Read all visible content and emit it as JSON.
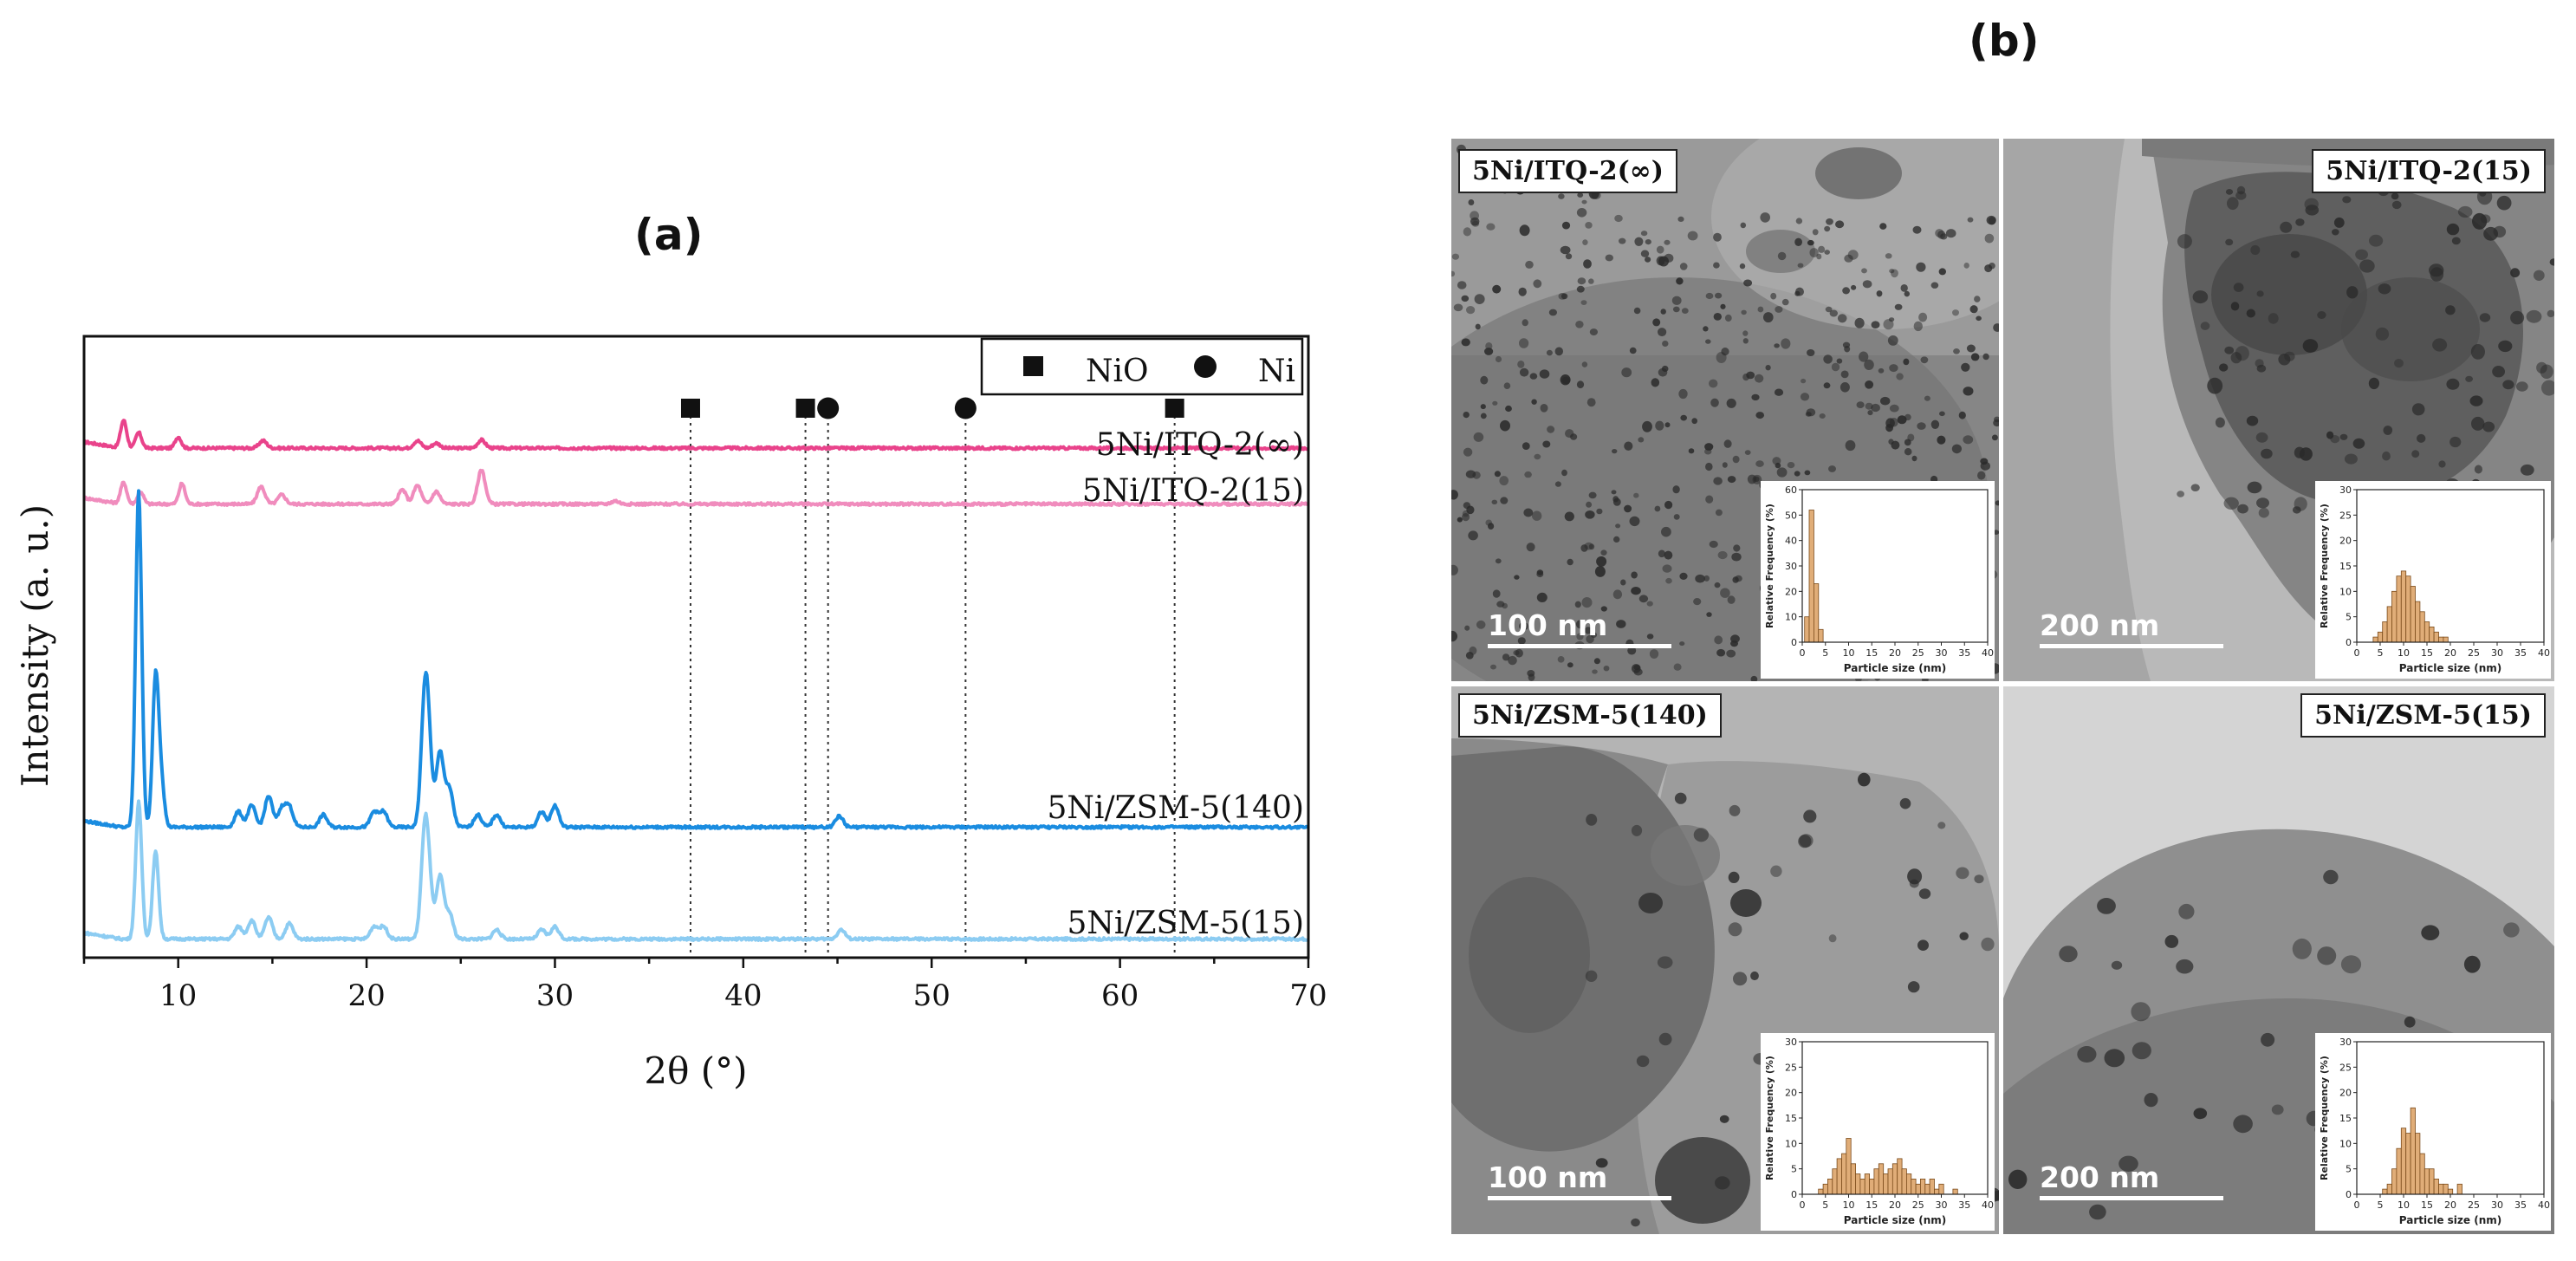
{
  "panel_a_label": "(a)",
  "panel_b_label": "(b)",
  "colors": {
    "itq_inf": "#e9438b",
    "itq_15": "#f08cbd",
    "zsm_140": "#1a8ce0",
    "zsm_15": "#8cccf2",
    "histogram_bar": "#e0ad78",
    "histogram_edge": "#7a4a1a"
  },
  "chart_data": [
    {
      "type": "line",
      "xlabel": "2θ (°)",
      "ylabel": "Intensity (a. u.)",
      "xlim": [
        5,
        70
      ],
      "xticks": [
        10,
        20,
        30,
        40,
        50,
        60,
        70
      ],
      "legend": {
        "placement": "top-right",
        "entries": [
          {
            "marker": "square",
            "label": "NiO"
          },
          {
            "marker": "circle",
            "label": "Ni"
          }
        ]
      },
      "reference_lines": [
        {
          "x": 37.2,
          "marker": "square"
        },
        {
          "x": 43.3,
          "marker": "square"
        },
        {
          "x": 44.5,
          "marker": "circle"
        },
        {
          "x": 51.8,
          "marker": "circle"
        },
        {
          "x": 62.9,
          "marker": "square"
        }
      ],
      "series": [
        {
          "name": "5Ni/ITQ-2(∞)",
          "color": "#e9438b",
          "baseline": 0.82,
          "peaks": [
            [
              7.1,
              0.045
            ],
            [
              7.9,
              0.025
            ],
            [
              10.0,
              0.018
            ],
            [
              14.5,
              0.012
            ],
            [
              22.7,
              0.012
            ],
            [
              23.7,
              0.008
            ],
            [
              26.1,
              0.013
            ]
          ]
        },
        {
          "name": "5Ni/ITQ-2(15)",
          "color": "#f08cbd",
          "baseline": 0.73,
          "peaks": [
            [
              7.1,
              0.035
            ],
            [
              8.0,
              0.02
            ],
            [
              10.2,
              0.033
            ],
            [
              14.4,
              0.028
            ],
            [
              15.5,
              0.015
            ],
            [
              21.9,
              0.023
            ],
            [
              22.7,
              0.03
            ],
            [
              23.7,
              0.02
            ],
            [
              26.1,
              0.055
            ],
            [
              33.2,
              0.005
            ]
          ]
        },
        {
          "name": "5Ni/ZSM-5(140)",
          "color": "#1a8ce0",
          "baseline": 0.21,
          "peaks": [
            [
              7.9,
              0.54
            ],
            [
              8.8,
              0.24
            ],
            [
              9.1,
              0.07
            ],
            [
              13.2,
              0.025
            ],
            [
              13.9,
              0.035
            ],
            [
              14.8,
              0.05
            ],
            [
              15.5,
              0.03
            ],
            [
              15.9,
              0.032
            ],
            [
              17.7,
              0.02
            ],
            [
              20.4,
              0.025
            ],
            [
              20.9,
              0.025
            ],
            [
              23.1,
              0.195
            ],
            [
              23.3,
              0.08
            ],
            [
              23.9,
              0.12
            ],
            [
              24.4,
              0.06
            ],
            [
              25.9,
              0.02
            ],
            [
              26.9,
              0.02
            ],
            [
              29.3,
              0.025
            ],
            [
              30.0,
              0.035
            ],
            [
              45.1,
              0.018
            ]
          ]
        },
        {
          "name": "5Ni/ZSM-5(15)",
          "color": "#8cccf2",
          "baseline": 0.03,
          "peaks": [
            [
              7.9,
              0.22
            ],
            [
              8.8,
              0.14
            ],
            [
              13.2,
              0.02
            ],
            [
              13.9,
              0.03
            ],
            [
              14.8,
              0.035
            ],
            [
              15.9,
              0.025
            ],
            [
              20.4,
              0.02
            ],
            [
              20.9,
              0.02
            ],
            [
              23.1,
              0.16
            ],
            [
              23.3,
              0.06
            ],
            [
              23.9,
              0.1
            ],
            [
              24.4,
              0.04
            ],
            [
              26.9,
              0.015
            ],
            [
              29.3,
              0.015
            ],
            [
              30.0,
              0.02
            ],
            [
              45.2,
              0.015
            ]
          ]
        }
      ]
    },
    {
      "type": "bar",
      "sample": "5Ni/ITQ-2(∞)",
      "xlabel": "Particle size (nm)",
      "ylabel": "Relative Frequency (%)",
      "xlim": [
        0,
        40
      ],
      "xticks": [
        0,
        5,
        10,
        15,
        20,
        25,
        30,
        35,
        40
      ],
      "ylim": [
        0,
        60
      ],
      "yticks": [
        0,
        10,
        20,
        30,
        40,
        50,
        60
      ],
      "bin_width": 1,
      "bins": [
        [
          1,
          10
        ],
        [
          2,
          52
        ],
        [
          3,
          23
        ],
        [
          4,
          5
        ]
      ]
    },
    {
      "type": "bar",
      "sample": "5Ni/ITQ-2(15)",
      "xlabel": "Particle size (nm)",
      "ylabel": "Relative Frequency (%)",
      "xlim": [
        0,
        40
      ],
      "xticks": [
        0,
        5,
        10,
        15,
        20,
        25,
        30,
        35,
        40
      ],
      "ylim": [
        0,
        30
      ],
      "yticks": [
        0,
        5,
        10,
        15,
        20,
        25,
        30
      ],
      "bin_width": 1,
      "bins": [
        [
          4,
          1
        ],
        [
          5,
          2
        ],
        [
          6,
          4
        ],
        [
          7,
          7
        ],
        [
          8,
          10
        ],
        [
          9,
          13
        ],
        [
          10,
          14
        ],
        [
          11,
          13
        ],
        [
          12,
          11
        ],
        [
          13,
          8
        ],
        [
          14,
          6
        ],
        [
          15,
          4
        ],
        [
          16,
          3
        ],
        [
          17,
          2
        ],
        [
          18,
          1
        ],
        [
          19,
          1
        ]
      ]
    },
    {
      "type": "bar",
      "sample": "5Ni/ZSM-5(140)",
      "xlabel": "Particle size (nm)",
      "ylabel": "Relative Frequency (%)",
      "xlim": [
        0,
        40
      ],
      "xticks": [
        0,
        5,
        10,
        15,
        20,
        25,
        30,
        35,
        40
      ],
      "ylim": [
        0,
        30
      ],
      "yticks": [
        0,
        5,
        10,
        15,
        20,
        25,
        30
      ],
      "bin_width": 1,
      "bins": [
        [
          4,
          1
        ],
        [
          5,
          2
        ],
        [
          6,
          3
        ],
        [
          7,
          5
        ],
        [
          8,
          7
        ],
        [
          9,
          8
        ],
        [
          10,
          11
        ],
        [
          11,
          6
        ],
        [
          12,
          4
        ],
        [
          13,
          3
        ],
        [
          14,
          4
        ],
        [
          15,
          3
        ],
        [
          16,
          5
        ],
        [
          17,
          6
        ],
        [
          18,
          4
        ],
        [
          19,
          5
        ],
        [
          20,
          6
        ],
        [
          21,
          7
        ],
        [
          22,
          5
        ],
        [
          23,
          4
        ],
        [
          24,
          3
        ],
        [
          25,
          2
        ],
        [
          26,
          3
        ],
        [
          27,
          2
        ],
        [
          28,
          3
        ],
        [
          29,
          1
        ],
        [
          30,
          2
        ],
        [
          33,
          1
        ]
      ]
    },
    {
      "type": "bar",
      "sample": "5Ni/ZSM-5(15)",
      "xlabel": "Particle size (nm)",
      "ylabel": "Relative Frequency (%)",
      "xlim": [
        0,
        40
      ],
      "xticks": [
        0,
        5,
        10,
        15,
        20,
        25,
        30,
        35,
        40
      ],
      "ylim": [
        0,
        30
      ],
      "yticks": [
        0,
        5,
        10,
        15,
        20,
        25,
        30
      ],
      "bin_width": 1,
      "bins": [
        [
          6,
          1
        ],
        [
          7,
          2
        ],
        [
          8,
          5
        ],
        [
          9,
          9
        ],
        [
          10,
          13
        ],
        [
          11,
          12
        ],
        [
          12,
          17
        ],
        [
          13,
          12
        ],
        [
          14,
          8
        ],
        [
          15,
          5
        ],
        [
          16,
          5
        ],
        [
          17,
          3
        ],
        [
          18,
          2
        ],
        [
          19,
          2
        ],
        [
          20,
          1
        ],
        [
          22,
          2
        ]
      ]
    }
  ],
  "tem": [
    {
      "label": "5Ni/ITQ-2(∞)",
      "scale": "100 nm"
    },
    {
      "label": "5Ni/ITQ-2(15)",
      "scale": "200 nm"
    },
    {
      "label": "5Ni/ZSM-5(140)",
      "scale": "100 nm"
    },
    {
      "label": "5Ni/ZSM-5(15)",
      "scale": "200 nm"
    }
  ]
}
